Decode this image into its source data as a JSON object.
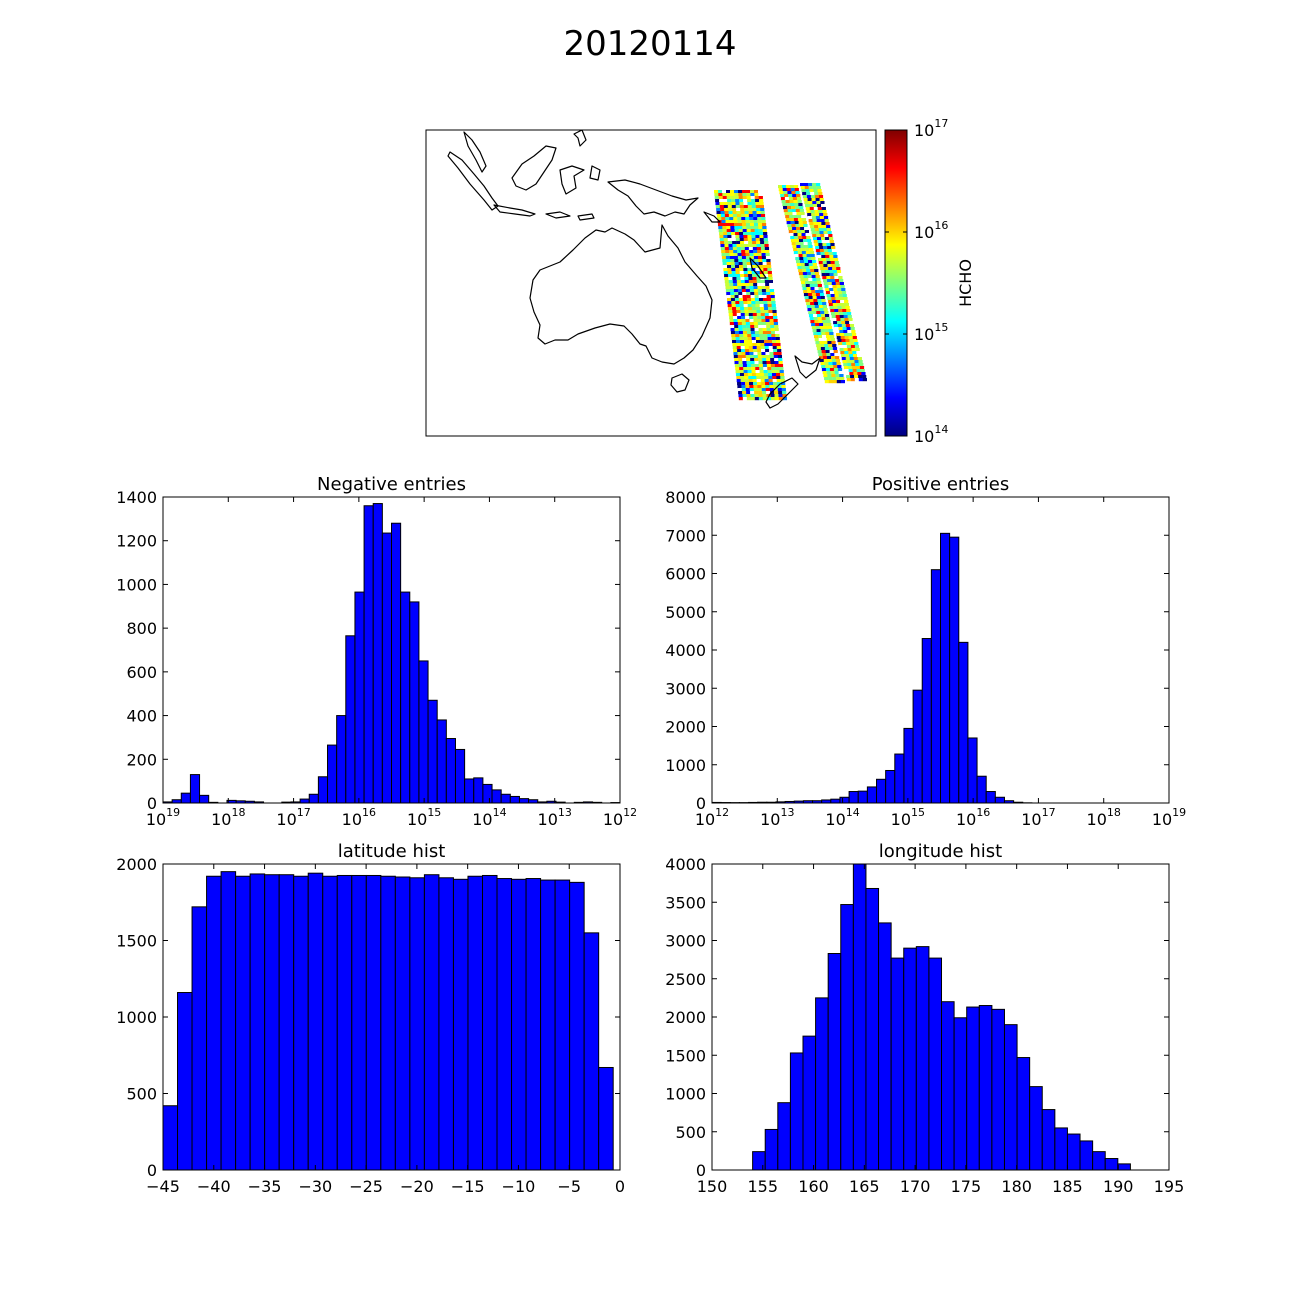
{
  "figure": {
    "title": "20120114"
  },
  "map": {
    "colorbar_label": "HCHO",
    "colorbar_ticks": [
      {
        "base": "10",
        "exp": "17"
      },
      {
        "base": "10",
        "exp": "16"
      },
      {
        "base": "10",
        "exp": "15"
      },
      {
        "base": "10",
        "exp": "14"
      }
    ],
    "colormap": [
      "#00007f",
      "#0000ff",
      "#007fff",
      "#00ffff",
      "#7fff7f",
      "#ffff00",
      "#ff7f00",
      "#ff0000",
      "#7f0000"
    ]
  },
  "chart_data": [
    {
      "id": "negative",
      "type": "bar",
      "title": "Negative entries",
      "xscale": "log-reversed",
      "xlim_exp": [
        19,
        12
      ],
      "ylim": [
        0,
        1400
      ],
      "yticks": [
        "0",
        "200",
        "400",
        "600",
        "800",
        "1000",
        "1200",
        "1400"
      ],
      "xticks": [
        {
          "base": "10",
          "exp": "19"
        },
        {
          "base": "10",
          "exp": "18"
        },
        {
          "base": "10",
          "exp": "17"
        },
        {
          "base": "10",
          "exp": "16"
        },
        {
          "base": "10",
          "exp": "15"
        },
        {
          "base": "10",
          "exp": "14"
        },
        {
          "base": "10",
          "exp": "13"
        },
        {
          "base": "10",
          "exp": "12"
        }
      ],
      "bin_width_exp": 0.14,
      "values": [
        5,
        15,
        45,
        130,
        35,
        3,
        0,
        12,
        10,
        8,
        5,
        0,
        0,
        4,
        5,
        18,
        40,
        120,
        265,
        400,
        765,
        965,
        1360,
        1370,
        1235,
        1280,
        965,
        920,
        650,
        470,
        380,
        295,
        245,
        110,
        115,
        85,
        60,
        40,
        30,
        20,
        15,
        5,
        8,
        4,
        0,
        3,
        5,
        3,
        0,
        2
      ]
    },
    {
      "id": "positive",
      "type": "bar",
      "title": "Positive entries",
      "xscale": "log",
      "xlim_exp": [
        12,
        19
      ],
      "ylim": [
        0,
        8000
      ],
      "yticks": [
        "0",
        "1000",
        "2000",
        "3000",
        "4000",
        "5000",
        "6000",
        "7000",
        "8000"
      ],
      "xticks": [
        {
          "base": "10",
          "exp": "12"
        },
        {
          "base": "10",
          "exp": "13"
        },
        {
          "base": "10",
          "exp": "14"
        },
        {
          "base": "10",
          "exp": "15"
        },
        {
          "base": "10",
          "exp": "16"
        },
        {
          "base": "10",
          "exp": "17"
        },
        {
          "base": "10",
          "exp": "18"
        },
        {
          "base": "10",
          "exp": "19"
        }
      ],
      "bin_width_exp": 0.14,
      "values": [
        15,
        12,
        10,
        10,
        15,
        20,
        20,
        30,
        40,
        50,
        60,
        60,
        80,
        100,
        150,
        300,
        310,
        420,
        620,
        850,
        1280,
        1950,
        2950,
        4300,
        6100,
        7050,
        6950,
        4200,
        1700,
        700,
        300,
        150,
        60,
        20,
        5
      ]
    },
    {
      "id": "latitude",
      "type": "bar",
      "title": "latitude hist",
      "xlim": [
        -45,
        0
      ],
      "ylim": [
        0,
        2000
      ],
      "yticks": [
        "0",
        "500",
        "1000",
        "1500",
        "2000"
      ],
      "xticks": [
        "−45",
        "−40",
        "−35",
        "−30",
        "−25",
        "−20",
        "−15",
        "−10",
        "−5",
        "0"
      ],
      "bin_start": -45,
      "bin_width": 1.43,
      "values": [
        420,
        1160,
        1720,
        1920,
        1950,
        1920,
        1935,
        1930,
        1930,
        1920,
        1940,
        1920,
        1925,
        1925,
        1925,
        1920,
        1915,
        1910,
        1930,
        1910,
        1900,
        1920,
        1925,
        1905,
        1900,
        1905,
        1895,
        1895,
        1880,
        1550,
        670
      ]
    },
    {
      "id": "longitude",
      "type": "bar",
      "title": "longitude hist",
      "xlim": [
        150,
        195
      ],
      "ylim": [
        0,
        4000
      ],
      "yticks": [
        "0",
        "500",
        "1000",
        "1500",
        "2000",
        "2500",
        "3000",
        "3500",
        "4000"
      ],
      "xticks": [
        "150",
        "155",
        "160",
        "165",
        "170",
        "175",
        "180",
        "185",
        "190",
        "195"
      ],
      "bin_start": 154,
      "bin_width": 1.24,
      "values": [
        240,
        530,
        880,
        1530,
        1750,
        2250,
        2830,
        3470,
        4000,
        3680,
        3230,
        2770,
        2900,
        2920,
        2770,
        2200,
        1990,
        2130,
        2150,
        2100,
        1900,
        1470,
        1090,
        790,
        550,
        470,
        380,
        240,
        150,
        80
      ]
    }
  ]
}
